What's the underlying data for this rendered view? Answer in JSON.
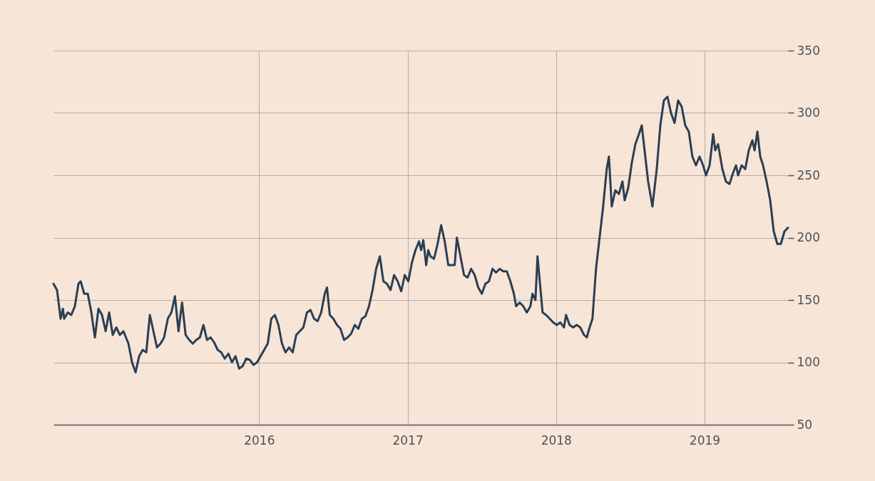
{
  "chart_data": {
    "type": "line",
    "x": [
      2014.615,
      2014.639,
      2014.663,
      2014.678,
      2014.687,
      2014.711,
      2014.735,
      2014.759,
      2014.783,
      2014.798,
      2014.822,
      2014.846,
      2014.87,
      2014.894,
      2014.918,
      2014.942,
      2014.966,
      2014.99,
      2015.014,
      2015.038,
      2015.062,
      2015.086,
      2015.12,
      2015.144,
      2015.168,
      2015.192,
      2015.216,
      2015.24,
      2015.264,
      2015.288,
      2015.312,
      2015.336,
      2015.36,
      2015.385,
      2015.409,
      2015.433,
      2015.457,
      2015.481,
      2015.505,
      2015.529,
      2015.553,
      2015.577,
      2015.601,
      2015.625,
      2015.649,
      2015.673,
      2015.697,
      2015.721,
      2015.745,
      2015.769,
      2015.793,
      2015.817,
      2015.841,
      2015.865,
      2015.889,
      2015.913,
      2015.937,
      2015.962,
      2015.986,
      2016.01,
      2016.034,
      2016.058,
      2016.082,
      2016.106,
      2016.13,
      2016.154,
      2016.178,
      2016.202,
      2016.226,
      2016.25,
      2016.274,
      2016.298,
      2016.322,
      2016.346,
      2016.37,
      2016.394,
      2016.418,
      2016.442,
      2016.457,
      2016.476,
      2016.5,
      2016.524,
      2016.548,
      2016.572,
      2016.596,
      2016.62,
      2016.644,
      2016.668,
      2016.692,
      2016.716,
      2016.74,
      2016.764,
      2016.788,
      2016.813,
      2016.837,
      2016.861,
      2016.885,
      2016.909,
      2016.933,
      2016.957,
      2016.981,
      2017.005,
      2017.029,
      2017.053,
      2017.077,
      2017.091,
      2017.106,
      2017.125,
      2017.139,
      2017.154,
      2017.178,
      2017.202,
      2017.226,
      2017.25,
      2017.274,
      2017.293,
      2017.317,
      2017.332,
      2017.356,
      2017.38,
      2017.404,
      2017.428,
      2017.452,
      2017.476,
      2017.5,
      2017.524,
      2017.548,
      2017.572,
      2017.596,
      2017.62,
      2017.644,
      2017.668,
      2017.692,
      2017.716,
      2017.731,
      2017.755,
      2017.779,
      2017.803,
      2017.827,
      2017.841,
      2017.861,
      2017.875,
      2017.894,
      2017.909,
      2017.933,
      2017.957,
      2017.981,
      2018.005,
      2018.029,
      2018.053,
      2018.067,
      2018.091,
      2018.115,
      2018.139,
      2018.163,
      2018.188,
      2018.207,
      2018.226,
      2018.245,
      2018.269,
      2018.293,
      2018.317,
      2018.341,
      2018.356,
      2018.375,
      2018.399,
      2018.423,
      2018.447,
      2018.462,
      2018.486,
      2018.51,
      2018.534,
      2018.558,
      2018.577,
      2018.596,
      2018.62,
      2018.649,
      2018.678,
      2018.702,
      2018.726,
      2018.75,
      2018.774,
      2018.798,
      2018.822,
      2018.846,
      2018.87,
      2018.894,
      2018.918,
      2018.942,
      2018.966,
      2018.99,
      2019.01,
      2019.034,
      2019.058,
      2019.072,
      2019.091,
      2019.12,
      2019.144,
      2019.168,
      2019.192,
      2019.212,
      2019.226,
      2019.25,
      2019.274,
      2019.298,
      2019.322,
      2019.337,
      2019.356,
      2019.375,
      2019.394,
      2019.418,
      2019.442,
      2019.466,
      2019.49,
      2019.514,
      2019.538,
      2019.562
    ],
    "series": [
      {
        "color": "#2b3f52",
        "values": [
          163,
          158,
          135,
          143,
          135,
          140,
          138,
          145,
          163,
          165,
          155,
          155,
          140,
          120,
          143,
          138,
          125,
          140,
          122,
          128,
          122,
          125,
          115,
          100,
          92,
          105,
          110,
          108,
          138,
          125,
          112,
          115,
          120,
          135,
          140,
          153,
          125,
          148,
          122,
          118,
          115,
          118,
          120,
          130,
          118,
          120,
          116,
          110,
          108,
          103,
          107,
          100,
          105,
          95,
          97,
          103,
          102,
          98,
          100,
          105,
          110,
          115,
          135,
          138,
          130,
          115,
          108,
          112,
          108,
          122,
          125,
          128,
          140,
          142,
          135,
          133,
          140,
          155,
          160,
          138,
          135,
          130,
          127,
          118,
          120,
          123,
          130,
          127,
          135,
          137,
          145,
          158,
          175,
          185,
          165,
          163,
          158,
          170,
          165,
          157,
          170,
          165,
          180,
          190,
          197,
          190,
          198,
          178,
          190,
          185,
          183,
          195,
          210,
          197,
          178,
          178,
          178,
          200,
          185,
          170,
          168,
          175,
          170,
          160,
          155,
          163,
          165,
          175,
          172,
          175,
          173,
          173,
          165,
          155,
          145,
          148,
          145,
          140,
          145,
          155,
          150,
          185,
          160,
          140,
          138,
          135,
          132,
          130,
          132,
          128,
          138,
          130,
          128,
          130,
          128,
          122,
          120,
          128,
          135,
          175,
          200,
          225,
          255,
          265,
          225,
          238,
          235,
          245,
          230,
          240,
          260,
          275,
          283,
          290,
          270,
          245,
          225,
          255,
          290,
          310,
          313,
          300,
          292,
          310,
          305,
          290,
          285,
          265,
          258,
          265,
          258,
          250,
          258,
          283,
          270,
          275,
          255,
          245,
          243,
          252,
          258,
          250,
          258,
          255,
          270,
          278,
          270,
          285,
          265,
          258,
          245,
          230,
          205,
          195,
          195,
          205,
          208
        ]
      }
    ],
    "xlim": [
      2014.615,
      2019.562
    ],
    "xticks": [
      2016,
      2017,
      2018,
      2019
    ],
    "ylim": [
      50,
      350
    ],
    "yticks": [
      50,
      100,
      150,
      200,
      250,
      300,
      350
    ],
    "grid": true
  }
}
